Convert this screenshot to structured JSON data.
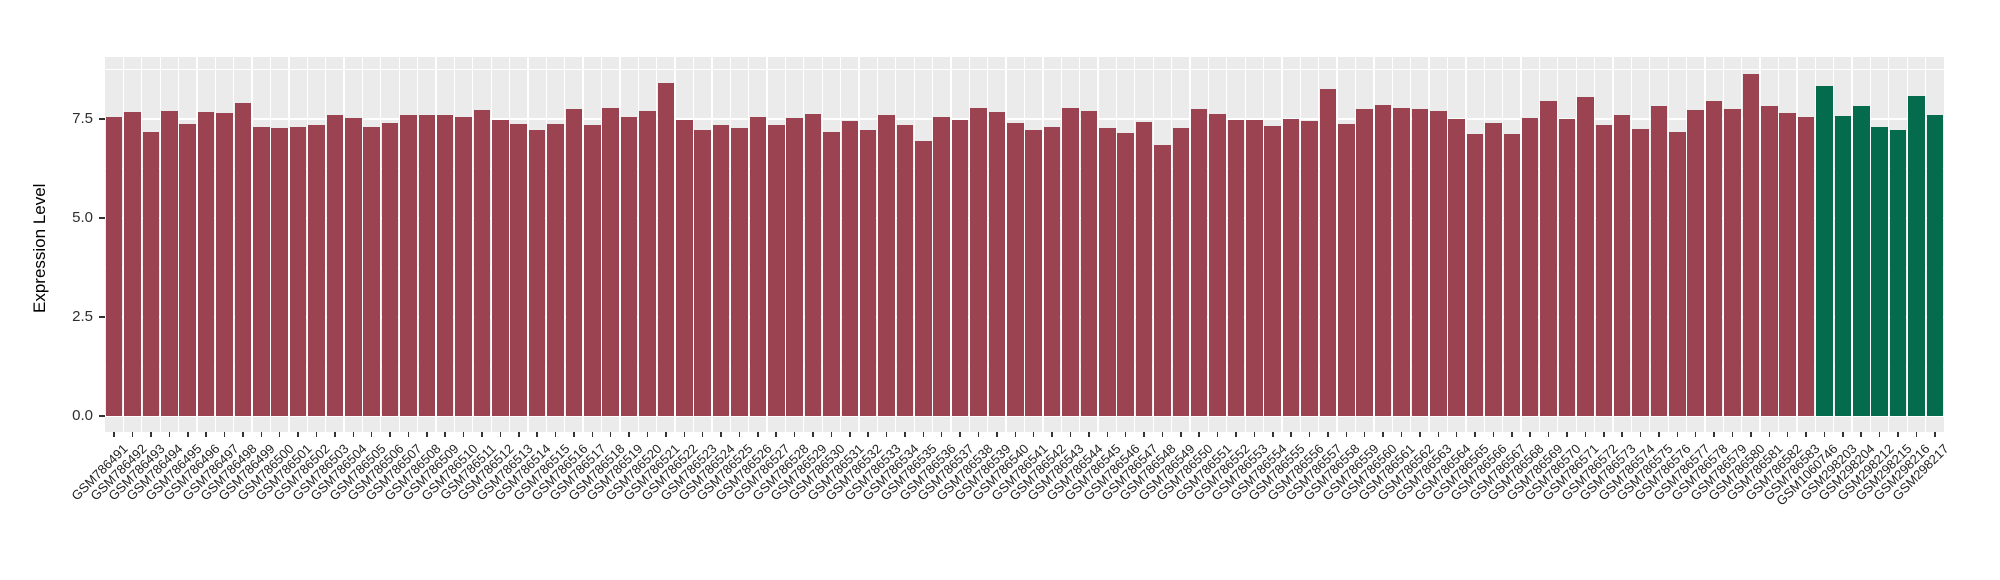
{
  "chart_data": {
    "type": "bar",
    "title": "",
    "xlabel": "",
    "ylabel": "Expression Level",
    "ylim": [
      0,
      9.07
    ],
    "grid": "on",
    "legend": "none",
    "panel_bg": "#EBEBEB",
    "grid_color": "#FFFFFF",
    "y_ticks": [
      {
        "value": 0.0,
        "label": "0.0"
      },
      {
        "value": 2.5,
        "label": "2.5"
      },
      {
        "value": 5.0,
        "label": "5.0"
      },
      {
        "value": 7.5,
        "label": "7.5"
      }
    ],
    "y_minor_ticks": [
      1.25,
      3.75,
      6.25,
      8.75
    ],
    "segments": [
      {
        "name": "red-group",
        "color": "#9C4351",
        "labels": [
          "GSM786491",
          "GSM786492",
          "GSM786493",
          "GSM786494",
          "GSM786495",
          "GSM786496",
          "GSM786497",
          "GSM786498",
          "GSM786499",
          "GSM786500",
          "GSM786501",
          "GSM786502",
          "GSM786503",
          "GSM786504",
          "GSM786505",
          "GSM786506",
          "GSM786507",
          "GSM786508",
          "GSM786509",
          "GSM786510",
          "GSM786511",
          "GSM786512",
          "GSM786513",
          "GSM786514",
          "GSM786515",
          "GSM786516",
          "GSM786517",
          "GSM786518",
          "GSM786519",
          "GSM786520",
          "GSM786521",
          "GSM786522",
          "GSM786523",
          "GSM786524",
          "GSM786525",
          "GSM786526",
          "GSM786527",
          "GSM786528",
          "GSM786529",
          "GSM786530",
          "GSM786531",
          "GSM786532",
          "GSM786533",
          "GSM786534",
          "GSM786535",
          "GSM786536",
          "GSM786537",
          "GSM786538",
          "GSM786539",
          "GSM786540",
          "GSM786541",
          "GSM786542",
          "GSM786543",
          "GSM786544",
          "GSM786545",
          "GSM786546",
          "GSM786547",
          "GSM786548",
          "GSM786549",
          "GSM786550",
          "GSM786551",
          "GSM786552",
          "GSM786553",
          "GSM786554",
          "GSM786555",
          "GSM786556",
          "GSM786557",
          "GSM786558",
          "GSM786559",
          "GSM786560",
          "GSM786561",
          "GSM786562",
          "GSM786563",
          "GSM786564",
          "GSM786565",
          "GSM786566",
          "GSM786567",
          "GSM786568",
          "GSM786569",
          "GSM786570",
          "GSM786571",
          "GSM786572",
          "GSM786573",
          "GSM786574",
          "GSM786575",
          "GSM786576",
          "GSM786577",
          "GSM786578",
          "GSM786579",
          "GSM786580",
          "GSM786581",
          "GSM786582",
          "GSM786583"
        ],
        "values": [
          7.55,
          7.67,
          7.16,
          7.71,
          7.38,
          7.67,
          7.64,
          7.9,
          7.31,
          7.27,
          7.29,
          7.36,
          7.61,
          7.53,
          7.3,
          7.39,
          7.61,
          7.61,
          7.61,
          7.55,
          7.72,
          7.47,
          7.37,
          7.23,
          7.37,
          7.75,
          7.34,
          7.78,
          7.55,
          7.69,
          8.42,
          7.47,
          7.23,
          7.34,
          7.27,
          7.55,
          7.36,
          7.53,
          7.63,
          7.16,
          7.44,
          7.21,
          7.61,
          7.36,
          6.95,
          7.54,
          7.48,
          7.79,
          7.68,
          7.41,
          7.22,
          7.3,
          7.78,
          7.69,
          7.27,
          7.14,
          7.42,
          6.85,
          7.27,
          7.75,
          7.63,
          7.47,
          7.47,
          7.32,
          7.5,
          7.46,
          8.26,
          7.37,
          7.74,
          7.85,
          7.79,
          7.74,
          7.71,
          7.5,
          7.12,
          7.4,
          7.12,
          7.53,
          7.95,
          7.51,
          8.06,
          7.34,
          7.61,
          7.25,
          7.84,
          7.17,
          7.73,
          7.95,
          7.75,
          8.64,
          7.83,
          7.66,
          7.56
        ]
      },
      {
        "name": "green-group",
        "color": "#046B4C",
        "labels": [
          "GSM1060746",
          "GSM298203",
          "GSM298204",
          "GSM298212",
          "GSM298215",
          "GSM298216",
          "GSM298217"
        ],
        "values": [
          8.34,
          7.57,
          7.82,
          7.3,
          7.21,
          8.07,
          7.61
        ]
      }
    ]
  }
}
